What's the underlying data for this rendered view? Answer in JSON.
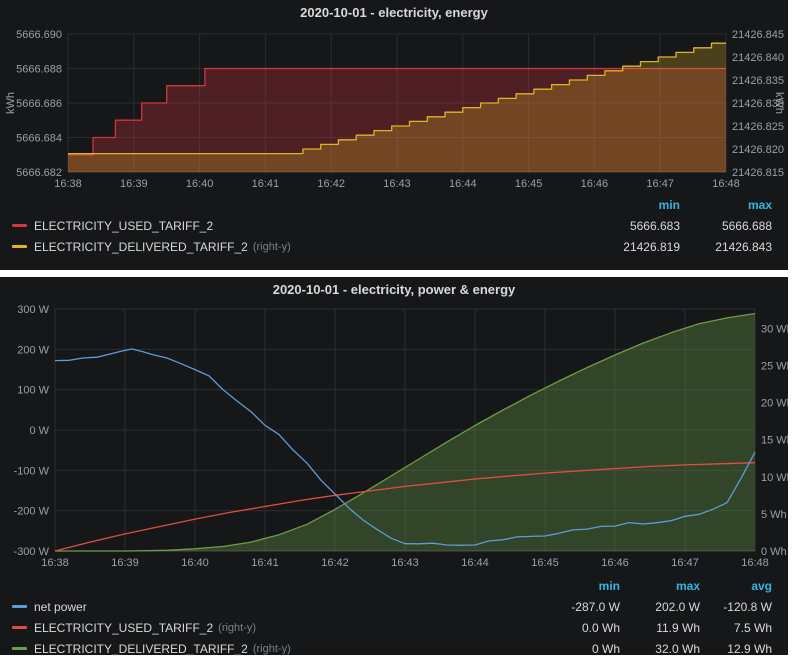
{
  "page": {
    "background": "#ffffff",
    "panel_background": "#161719"
  },
  "chart_data": [
    {
      "type": "line",
      "title": "2020-10-01 - electricity, energy",
      "x_tick_labels": [
        "16:38",
        "16:39",
        "16:40",
        "16:41",
        "16:42",
        "16:43",
        "16:44",
        "16:45",
        "16:46",
        "16:47",
        "16:48"
      ],
      "x_range": [
        0,
        10
      ],
      "grid": true,
      "legend_position": "bottom",
      "axes": {
        "left": {
          "unit": "kWh",
          "range": [
            5666.682,
            5666.69
          ],
          "ticks": {
            "values": [
              5666.69,
              5666.688,
              5666.686,
              5666.684,
              5666.682
            ],
            "labels": [
              "5666.690",
              "5666.688",
              "5666.686",
              "5666.684",
              "5666.682"
            ]
          }
        },
        "right": {
          "unit": "kWh",
          "range": [
            21426.815,
            21426.845
          ],
          "ticks": {
            "values": [
              21426.845,
              21426.84,
              21426.835,
              21426.83,
              21426.825,
              21426.82,
              21426.815
            ],
            "labels": [
              "21426.845",
              "21426.840",
              "21426.835",
              "21426.830",
              "21426.825",
              "21426.820",
              "21426.815"
            ]
          }
        }
      },
      "series": [
        {
          "name": "ELECTRICITY_USED_TARIFF_2",
          "axis": "left",
          "mode": "step",
          "color": "#d23440",
          "fill_opacity": 0.3,
          "points": [
            [
              0,
              5666.683
            ],
            [
              0.38,
              5666.684
            ],
            [
              0.72,
              5666.685
            ],
            [
              1.12,
              5666.686
            ],
            [
              1.5,
              5666.687
            ],
            [
              2.08,
              5666.688
            ],
            [
              10,
              5666.688
            ]
          ]
        },
        {
          "name": "ELECTRICITY_DELIVERED_TARIFF_2",
          "axis": "right",
          "mode": "step",
          "color": "#e0b423",
          "fill_opacity": 0.26,
          "points": [
            [
              0,
              21426.819
            ],
            [
              3.57,
              21426.82
            ],
            [
              3.84,
              21426.821
            ],
            [
              4.11,
              21426.822
            ],
            [
              4.38,
              21426.823
            ],
            [
              4.65,
              21426.824
            ],
            [
              4.92,
              21426.825
            ],
            [
              5.19,
              21426.826
            ],
            [
              5.46,
              21426.827
            ],
            [
              5.73,
              21426.828
            ],
            [
              6.0,
              21426.829
            ],
            [
              6.27,
              21426.83
            ],
            [
              6.54,
              21426.831
            ],
            [
              6.81,
              21426.832
            ],
            [
              7.08,
              21426.833
            ],
            [
              7.35,
              21426.834
            ],
            [
              7.62,
              21426.835
            ],
            [
              7.89,
              21426.836
            ],
            [
              8.16,
              21426.837
            ],
            [
              8.43,
              21426.838
            ],
            [
              8.7,
              21426.839
            ],
            [
              8.97,
              21426.84
            ],
            [
              9.24,
              21426.841
            ],
            [
              9.51,
              21426.842
            ],
            [
              9.78,
              21426.843
            ],
            [
              10,
              21426.843
            ]
          ]
        }
      ],
      "legend": {
        "headers": [
          "min",
          "max"
        ],
        "rows": [
          {
            "name": "ELECTRICITY_USED_TARIFF_2",
            "right_y": "",
            "color": "#d23440",
            "values": [
              "5666.683",
              "5666.688"
            ]
          },
          {
            "name": "ELECTRICITY_DELIVERED_TARIFF_2",
            "right_y": "(right-y)",
            "color": "#e0b423",
            "values": [
              "21426.819",
              "21426.843"
            ]
          }
        ]
      }
    },
    {
      "type": "line",
      "title": "2020-10-01 - electricity, power & energy",
      "x_tick_labels": [
        "16:38",
        "16:39",
        "16:40",
        "16:41",
        "16:42",
        "16:43",
        "16:44",
        "16:45",
        "16:46",
        "16:47",
        "16:48"
      ],
      "x_range": [
        0,
        10
      ],
      "grid": true,
      "legend_position": "bottom",
      "axes": {
        "left": {
          "unit": "",
          "range": [
            -300,
            300
          ],
          "ticks": {
            "values": [
              300,
              200,
              100,
              0,
              -100,
              -200,
              -300
            ],
            "labels": [
              "300 W",
              "200 W",
              "100 W",
              "0 W",
              "-100 W",
              "-200 W",
              "-300 W"
            ]
          }
        },
        "right": {
          "unit": "",
          "range": [
            0,
            32.6
          ],
          "ticks": {
            "values": [
              30,
              25,
              20,
              15,
              10,
              5,
              0
            ],
            "labels": [
              "30 Wh",
              "25 Wh",
              "20 Wh",
              "15 Wh",
              "10 Wh",
              "5 Wh",
              "0 Wh"
            ]
          }
        }
      },
      "series": [
        {
          "name": "ELECTRICITY_DELIVERED_TARIFF_2",
          "axis": "right",
          "mode": "line",
          "color": "#6b9e45",
          "fill_opacity": 0.34,
          "points": [
            [
              0,
              0
            ],
            [
              1,
              0
            ],
            [
              1.6,
              0.1
            ],
            [
              2,
              0.3
            ],
            [
              2.4,
              0.6
            ],
            [
              2.8,
              1.2
            ],
            [
              3.2,
              2.2
            ],
            [
              3.6,
              3.6
            ],
            [
              4,
              5.6
            ],
            [
              4.4,
              7.8
            ],
            [
              4.8,
              10.1
            ],
            [
              5.2,
              12.4
            ],
            [
              5.6,
              14.7
            ],
            [
              6,
              16.9
            ],
            [
              6.4,
              19.0
            ],
            [
              6.8,
              21.0
            ],
            [
              7.2,
              22.9
            ],
            [
              7.6,
              24.7
            ],
            [
              8,
              26.4
            ],
            [
              8.4,
              28.0
            ],
            [
              8.8,
              29.4
            ],
            [
              9.2,
              30.6
            ],
            [
              9.6,
              31.4
            ],
            [
              10,
              32.0
            ]
          ]
        },
        {
          "name": "ELECTRICITY_USED_TARIFF_2",
          "axis": "right",
          "mode": "line",
          "color": "#e24d42",
          "fill_opacity": 0,
          "points": [
            [
              0,
              0
            ],
            [
              0.5,
              1.2
            ],
            [
              1,
              2.3
            ],
            [
              1.5,
              3.3
            ],
            [
              2,
              4.3
            ],
            [
              2.5,
              5.2
            ],
            [
              3,
              6.0
            ],
            [
              3.5,
              6.8
            ],
            [
              4,
              7.5
            ],
            [
              4.5,
              8.1
            ],
            [
              5,
              8.7
            ],
            [
              5.5,
              9.2
            ],
            [
              6,
              9.7
            ],
            [
              6.5,
              10.1
            ],
            [
              7,
              10.5
            ],
            [
              7.5,
              10.8
            ],
            [
              8,
              11.1
            ],
            [
              8.5,
              11.4
            ],
            [
              9,
              11.6
            ],
            [
              9.5,
              11.75
            ],
            [
              10,
              11.9
            ]
          ]
        },
        {
          "name": "net power",
          "axis": "left",
          "mode": "line",
          "color": "#5f9bd5",
          "fill_opacity": 0,
          "jitter": 2,
          "points": [
            [
              0,
              172
            ],
            [
              0.2,
              177
            ],
            [
              0.4,
              174
            ],
            [
              0.6,
              181
            ],
            [
              0.8,
              188
            ],
            [
              1.0,
              197
            ],
            [
              1.1,
              202
            ],
            [
              1.25,
              191
            ],
            [
              1.4,
              185
            ],
            [
              1.6,
              179
            ],
            [
              1.8,
              169
            ],
            [
              2.0,
              153
            ],
            [
              2.2,
              131
            ],
            [
              2.4,
              105
            ],
            [
              2.6,
              75
            ],
            [
              2.8,
              45
            ],
            [
              3.0,
              16
            ],
            [
              3.2,
              -12
            ],
            [
              3.4,
              -48
            ],
            [
              3.6,
              -84
            ],
            [
              3.8,
              -122
            ],
            [
              4.0,
              -158
            ],
            [
              4.2,
              -192
            ],
            [
              4.4,
              -224
            ],
            [
              4.6,
              -250
            ],
            [
              4.8,
              -270
            ],
            [
              5.0,
              -282
            ],
            [
              5.2,
              -287
            ],
            [
              5.4,
              -284
            ],
            [
              5.6,
              -286
            ],
            [
              5.8,
              -281
            ],
            [
              6.0,
              -283
            ],
            [
              6.2,
              -277
            ],
            [
              6.4,
              -273
            ],
            [
              6.6,
              -268
            ],
            [
              6.8,
              -263
            ],
            [
              7.0,
              -258
            ],
            [
              7.2,
              -252
            ],
            [
              7.4,
              -248
            ],
            [
              7.6,
              -243
            ],
            [
              7.8,
              -238
            ],
            [
              8.0,
              -234
            ],
            [
              8.2,
              -230
            ],
            [
              8.4,
              -236
            ],
            [
              8.6,
              -228
            ],
            [
              8.8,
              -222
            ],
            [
              9.0,
              -216
            ],
            [
              9.2,
              -209
            ],
            [
              9.4,
              -200
            ],
            [
              9.6,
              -184
            ],
            [
              9.8,
              -122
            ],
            [
              10,
              -55
            ]
          ]
        }
      ],
      "legend": {
        "headers": [
          "min",
          "max",
          "avg"
        ],
        "rows": [
          {
            "name": "net power",
            "right_y": "",
            "color": "#5f9bd5",
            "values": [
              "-287.0 W",
              "202.0 W",
              "-120.8 W"
            ]
          },
          {
            "name": "ELECTRICITY_USED_TARIFF_2",
            "right_y": "(right-y)",
            "color": "#e24d42",
            "values": [
              "0.0 Wh",
              "11.9 Wh",
              "7.5 Wh"
            ]
          },
          {
            "name": "ELECTRICITY_DELIVERED_TARIFF_2",
            "right_y": "(right-y)",
            "color": "#6b9e45",
            "values": [
              "0 Wh",
              "32.0 Wh",
              "12.9 Wh"
            ]
          }
        ]
      }
    }
  ]
}
